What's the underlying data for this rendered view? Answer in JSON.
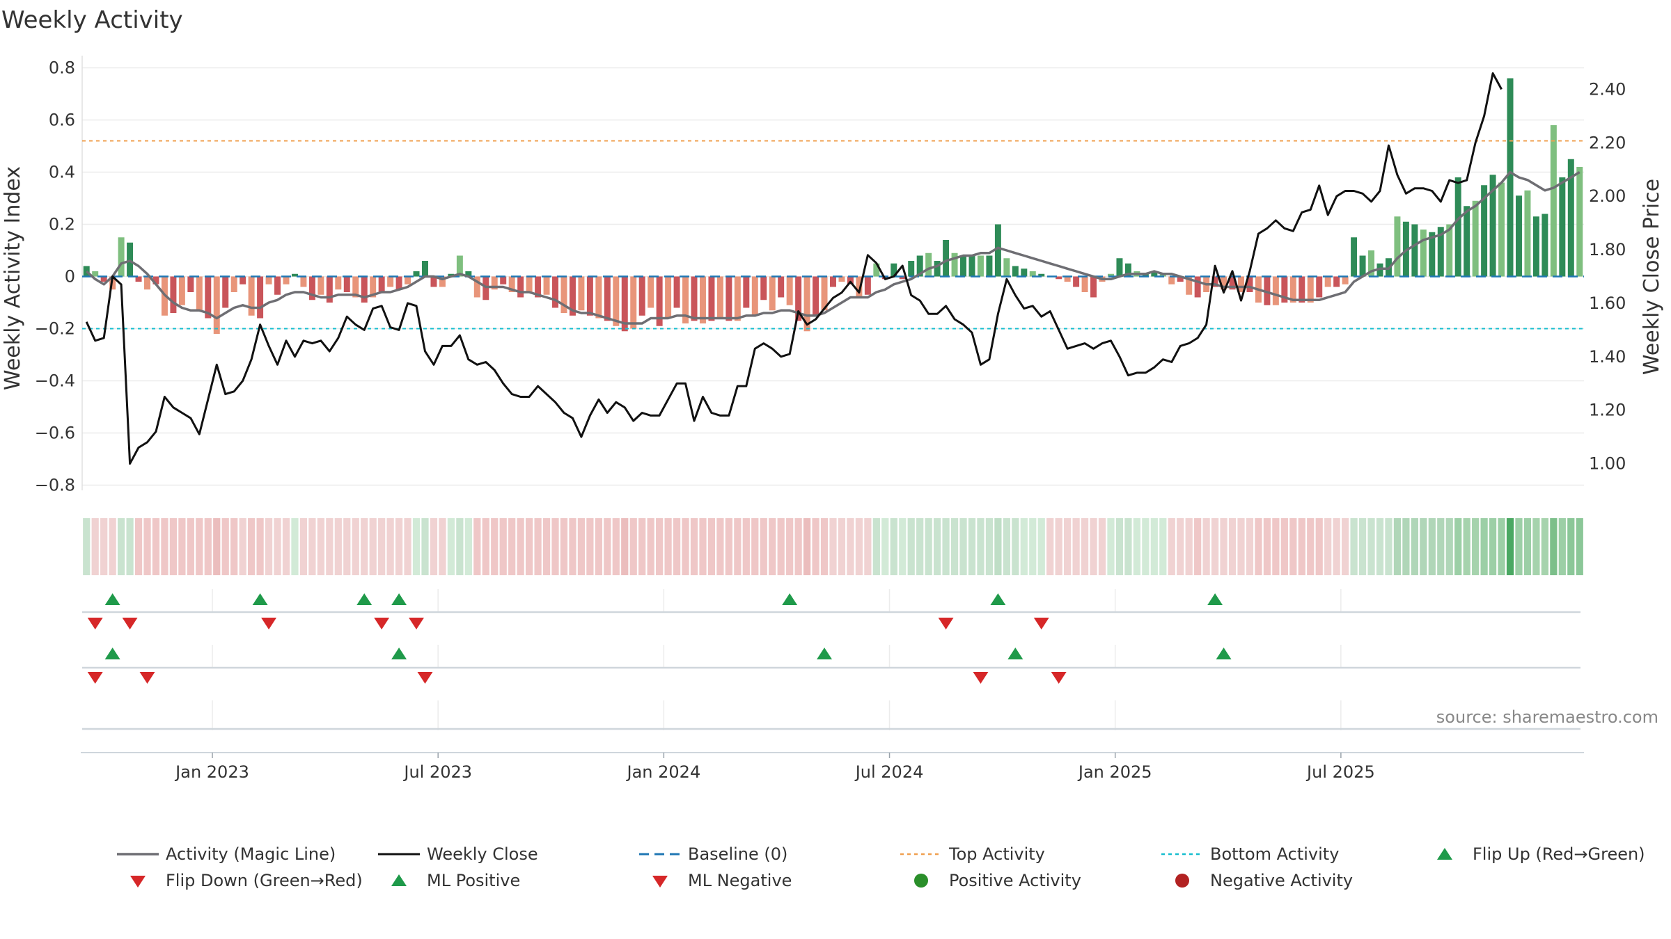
{
  "chart_data": {
    "type": "bar+line",
    "title": "Weekly Activity",
    "ylabel_left": "Weekly Activity Index",
    "ylabel_right": "Weekly Close Price",
    "yticks_left": [
      "0.8",
      "0.6",
      "0.4",
      "0.2",
      "0",
      "−0.2",
      "−0.4",
      "−0.6",
      "−0.8"
    ],
    "yticks_right": [
      "2.40",
      "2.20",
      "2.00",
      "1.80",
      "1.60",
      "1.40",
      "1.20",
      "1.00"
    ],
    "ylim_left": [
      -0.82,
      0.82
    ],
    "ylim_right": [
      0.9,
      2.5
    ],
    "xticks": [
      "Jan 2023",
      "Jul 2023",
      "Jan 2024",
      "Jul 2024",
      "Jan 2025",
      "Jul 2025"
    ],
    "xtick_weeks": [
      15,
      41,
      67,
      93,
      119,
      145
    ],
    "top_activity": 0.52,
    "bottom_activity": -0.2,
    "activity": [
      0.04,
      0.02,
      -0.02,
      -0.05,
      0.15,
      0.13,
      -0.02,
      -0.05,
      -0.03,
      -0.15,
      -0.14,
      -0.11,
      -0.06,
      -0.13,
      -0.16,
      -0.22,
      -0.12,
      -0.06,
      -0.03,
      -0.15,
      -0.16,
      -0.03,
      -0.07,
      -0.03,
      0.01,
      -0.04,
      -0.09,
      -0.07,
      -0.1,
      -0.05,
      -0.06,
      -0.08,
      -0.1,
      -0.08,
      -0.06,
      -0.04,
      -0.05,
      -0.03,
      0.02,
      0.06,
      -0.04,
      -0.04,
      0.01,
      0.08,
      0.02,
      -0.08,
      -0.09,
      -0.05,
      -0.03,
      -0.06,
      -0.08,
      -0.06,
      -0.08,
      -0.07,
      -0.12,
      -0.14,
      -0.15,
      -0.13,
      -0.15,
      -0.16,
      -0.17,
      -0.19,
      -0.21,
      -0.2,
      -0.15,
      -0.12,
      -0.19,
      -0.16,
      -0.12,
      -0.18,
      -0.17,
      -0.18,
      -0.17,
      -0.16,
      -0.17,
      -0.17,
      -0.12,
      -0.15,
      -0.09,
      -0.13,
      -0.08,
      -0.11,
      -0.17,
      -0.21,
      -0.15,
      -0.13,
      -0.04,
      -0.02,
      -0.03,
      -0.08,
      -0.07,
      0.05,
      -0.01,
      0.05,
      -0.01,
      0.06,
      0.08,
      0.09,
      0.06,
      0.14,
      0.09,
      0.08,
      0.08,
      0.08,
      0.08,
      0.2,
      0.07,
      0.04,
      0.03,
      0.02,
      0.01,
      0.0,
      -0.01,
      -0.02,
      -0.04,
      -0.06,
      -0.08,
      -0.02,
      0.01,
      0.07,
      0.05,
      0.02,
      0.01,
      0.02,
      0.01,
      -0.03,
      -0.02,
      -0.07,
      -0.08,
      -0.06,
      -0.04,
      -0.05,
      -0.05,
      -0.06,
      -0.06,
      -0.1,
      -0.11,
      -0.11,
      -0.1,
      -0.1,
      -0.1,
      -0.1,
      -0.08,
      -0.04,
      -0.04,
      -0.03,
      0.15,
      0.08,
      0.1,
      0.05,
      0.07,
      0.23,
      0.21,
      0.2,
      0.18,
      0.17,
      0.19,
      0.2,
      0.38,
      0.27,
      0.29,
      0.35,
      0.39,
      0.36,
      0.76,
      0.31,
      0.33,
      0.23,
      0.24,
      0.58,
      0.38,
      0.45,
      0.42
    ],
    "magic_line": [
      0.02,
      -0.01,
      -0.03,
      0.0,
      0.05,
      0.06,
      0.04,
      0.01,
      -0.03,
      -0.07,
      -0.1,
      -0.12,
      -0.13,
      -0.13,
      -0.14,
      -0.16,
      -0.14,
      -0.12,
      -0.11,
      -0.12,
      -0.12,
      -0.1,
      -0.09,
      -0.07,
      -0.06,
      -0.06,
      -0.07,
      -0.08,
      -0.08,
      -0.07,
      -0.07,
      -0.07,
      -0.08,
      -0.07,
      -0.06,
      -0.06,
      -0.05,
      -0.04,
      -0.02,
      0.0,
      0.0,
      -0.01,
      0.0,
      0.01,
      0.0,
      -0.02,
      -0.04,
      -0.04,
      -0.04,
      -0.05,
      -0.06,
      -0.06,
      -0.07,
      -0.08,
      -0.09,
      -0.11,
      -0.13,
      -0.14,
      -0.14,
      -0.15,
      -0.16,
      -0.17,
      -0.18,
      -0.18,
      -0.18,
      -0.16,
      -0.16,
      -0.16,
      -0.15,
      -0.15,
      -0.16,
      -0.16,
      -0.16,
      -0.16,
      -0.16,
      -0.16,
      -0.15,
      -0.15,
      -0.14,
      -0.14,
      -0.13,
      -0.13,
      -0.14,
      -0.15,
      -0.15,
      -0.14,
      -0.12,
      -0.1,
      -0.08,
      -0.08,
      -0.08,
      -0.06,
      -0.05,
      -0.03,
      -0.02,
      -0.01,
      0.01,
      0.03,
      0.04,
      0.06,
      0.07,
      0.08,
      0.08,
      0.09,
      0.09,
      0.11,
      0.1,
      0.09,
      0.08,
      0.07,
      0.06,
      0.05,
      0.04,
      0.03,
      0.02,
      0.01,
      0.0,
      -0.01,
      -0.01,
      0.0,
      0.01,
      0.01,
      0.01,
      0.02,
      0.01,
      0.01,
      0.0,
      -0.01,
      -0.02,
      -0.03,
      -0.03,
      -0.04,
      -0.04,
      -0.04,
      -0.04,
      -0.05,
      -0.06,
      -0.07,
      -0.08,
      -0.09,
      -0.09,
      -0.09,
      -0.09,
      -0.08,
      -0.07,
      -0.06,
      -0.02,
      0.0,
      0.02,
      0.03,
      0.03,
      0.07,
      0.1,
      0.12,
      0.14,
      0.15,
      0.16,
      0.18,
      0.22,
      0.25,
      0.27,
      0.3,
      0.33,
      0.36,
      0.4,
      0.38,
      0.37,
      0.35,
      0.33,
      0.34,
      0.36,
      0.38,
      0.4
    ],
    "weekly_close": [
      1.53,
      1.46,
      1.47,
      1.7,
      1.67,
      1.0,
      1.06,
      1.08,
      1.12,
      1.25,
      1.21,
      1.19,
      1.17,
      1.11,
      1.24,
      1.37,
      1.26,
      1.27,
      1.31,
      1.39,
      1.52,
      1.44,
      1.37,
      1.46,
      1.4,
      1.46,
      1.45,
      1.46,
      1.42,
      1.47,
      1.55,
      1.52,
      1.5,
      1.58,
      1.59,
      1.51,
      1.5,
      1.6,
      1.59,
      1.42,
      1.37,
      1.44,
      1.44,
      1.48,
      1.39,
      1.37,
      1.38,
      1.35,
      1.3,
      1.26,
      1.25,
      1.25,
      1.29,
      1.26,
      1.23,
      1.19,
      1.17,
      1.1,
      1.18,
      1.24,
      1.19,
      1.23,
      1.21,
      1.16,
      1.19,
      1.18,
      1.18,
      1.24,
      1.3,
      1.3,
      1.16,
      1.25,
      1.19,
      1.18,
      1.18,
      1.29,
      1.29,
      1.43,
      1.45,
      1.43,
      1.4,
      1.41,
      1.57,
      1.52,
      1.54,
      1.58,
      1.62,
      1.64,
      1.68,
      1.64,
      1.78,
      1.75,
      1.69,
      1.7,
      1.74,
      1.63,
      1.61,
      1.56,
      1.56,
      1.59,
      1.54,
      1.52,
      1.49,
      1.37,
      1.39,
      1.56,
      1.69,
      1.63,
      1.58,
      1.59,
      1.55,
      1.57,
      1.5,
      1.43,
      1.44,
      1.45,
      1.43,
      1.45,
      1.46,
      1.4,
      1.33,
      1.34,
      1.34,
      1.36,
      1.39,
      1.38,
      1.44,
      1.45,
      1.47,
      1.52,
      1.74,
      1.64,
      1.72,
      1.61,
      1.72,
      1.86,
      1.88,
      1.91,
      1.88,
      1.87,
      1.94,
      1.95,
      2.04,
      1.93,
      2.0,
      2.02,
      2.02,
      2.01,
      1.98,
      2.02,
      2.19,
      2.08,
      2.01,
      2.03,
      2.03,
      2.02,
      1.98,
      2.06,
      2.05,
      2.06,
      2.2,
      2.3,
      2.46,
      2.4
    ],
    "strip_colors": [
      "#c9e3cf",
      "#f0d2d2",
      "#f0d2d2",
      "#f0d2d2",
      "#c9e3cf",
      "#c9e3cf",
      "#efc7c7",
      "#efc7c7",
      "#efc7c7",
      "#efc7c7",
      "#efc7c7",
      "#efc7c7",
      "#efc7c7",
      "#efc7c7",
      "#efc7c7",
      "#ebbdbd",
      "#efc7c7",
      "#efc7c7",
      "#f0d2d2",
      "#efc7c7",
      "#efc7c7",
      "#f0d2d2",
      "#f0d2d2",
      "#f0d2d2",
      "#d2ead7",
      "#f0d2d2",
      "#f0d2d2",
      "#f0d2d2",
      "#f0d2d2",
      "#f0d2d2",
      "#f0d2d2",
      "#f0d2d2",
      "#f0d2d2",
      "#f0d2d2",
      "#f0d2d2",
      "#f0d2d2",
      "#f0d2d2",
      "#f0d2d2",
      "#d2ead7",
      "#c9e3cf",
      "#f0d2d2",
      "#f0d2d2",
      "#d2ead7",
      "#c9e3cf",
      "#d2ead7",
      "#efc7c7",
      "#efc7c7",
      "#efc7c7",
      "#efc7c7",
      "#efc7c7",
      "#efc7c7",
      "#efc7c7",
      "#efc7c7",
      "#efc7c7",
      "#efc7c7",
      "#efc7c7",
      "#efc7c7",
      "#efc7c7",
      "#efc7c7",
      "#efc7c7",
      "#efc7c7",
      "#efc7c7",
      "#ebbdbd",
      "#efc7c7",
      "#efc7c7",
      "#efc7c7",
      "#efc7c7",
      "#efc7c7",
      "#efc7c7",
      "#efc7c7",
      "#efc7c7",
      "#efc7c7",
      "#efc7c7",
      "#efc7c7",
      "#efc7c7",
      "#efc7c7",
      "#efc7c7",
      "#efc7c7",
      "#efc7c7",
      "#efc7c7",
      "#efc7c7",
      "#efc7c7",
      "#efc7c7",
      "#ebbdbd",
      "#efc7c7",
      "#efc7c7",
      "#f0d2d2",
      "#f0d2d2",
      "#f0d2d2",
      "#f0d2d2",
      "#f0d2d2",
      "#c9e3cf",
      "#d2ead7",
      "#c9e3cf",
      "#d2ead7",
      "#c9e3cf",
      "#c9e3cf",
      "#c9e3cf",
      "#c9e3cf",
      "#c9e3cf",
      "#c9e3cf",
      "#c9e3cf",
      "#c9e3cf",
      "#c9e3cf",
      "#c9e3cf",
      "#bfdec6",
      "#c9e3cf",
      "#c9e3cf",
      "#d2ead7",
      "#d2ead7",
      "#d2ead7",
      "#f0d2d2",
      "#f0d2d2",
      "#f0d2d2",
      "#f0d2d2",
      "#f0d2d2",
      "#f0d2d2",
      "#f0d2d2",
      "#d2ead7",
      "#c9e3cf",
      "#c9e3cf",
      "#d2ead7",
      "#d2ead7",
      "#d2ead7",
      "#d2ead7",
      "#f0d2d2",
      "#f0d2d2",
      "#f0d2d2",
      "#efc7c7",
      "#f0d2d2",
      "#f0d2d2",
      "#f0d2d2",
      "#f0d2d2",
      "#f0d2d2",
      "#f0d2d2",
      "#efc7c7",
      "#efc7c7",
      "#efc7c7",
      "#efc7c7",
      "#efc7c7",
      "#efc7c7",
      "#efc7c7",
      "#efc7c7",
      "#f0d2d2",
      "#f0d2d2",
      "#f0d2d2",
      "#c9e3cf",
      "#c9e3cf",
      "#c9e3cf",
      "#c9e3cf",
      "#c9e3cf",
      "#b0d6b8",
      "#b0d6b8",
      "#b0d6b8",
      "#b0d6b8",
      "#b0d6b8",
      "#b0d6b8",
      "#b0d6b8",
      "#9ccfa6",
      "#a6d3ad",
      "#a6d3ad",
      "#9ccfa6",
      "#9ccfa6",
      "#9ccfa6",
      "#4aa862",
      "#9ccfa6",
      "#9ccfa6",
      "#a6d3ad",
      "#a6d3ad",
      "#7cbf8a",
      "#9ccfa6",
      "#8bc798",
      "#8bc798"
    ],
    "flip_up_weeks": [
      3,
      20,
      32,
      36,
      81,
      105,
      130
    ],
    "flip_down_weeks": [
      1,
      5,
      21,
      34,
      38,
      99,
      110
    ],
    "ml_positive_weeks": [
      3,
      36,
      85,
      107,
      131
    ],
    "ml_negative_weeks": [
      1,
      7,
      39,
      103,
      112
    ],
    "positive_activity_weeks": [],
    "negative_activity_weeks": [],
    "source": "source: sharemaestro.com",
    "legend": [
      {
        "label": "Activity (Magic Line)",
        "symbol": "line-gray"
      },
      {
        "label": "Weekly Close",
        "symbol": "line-black"
      },
      {
        "label": "Baseline (0)",
        "symbol": "dash-blue"
      },
      {
        "label": "Top Activity",
        "symbol": "dot-orange"
      },
      {
        "label": "Bottom Activity",
        "symbol": "dot-cyan"
      },
      {
        "label": "Flip Up (Red→Green)",
        "symbol": "tri-up-green"
      },
      {
        "label": "Flip Down (Green→Red)",
        "symbol": "tri-down-red"
      },
      {
        "label": "ML Positive",
        "symbol": "tri-up-green"
      },
      {
        "label": "ML Negative",
        "symbol": "tri-down-red"
      },
      {
        "label": "Positive Activity",
        "symbol": "circle-green"
      },
      {
        "label": "Negative Activity",
        "symbol": "circle-red"
      }
    ],
    "colors": {
      "green_dark": "#2e8b57",
      "green_light": "#7fbf7f",
      "red_dark": "#c9555a",
      "red_light": "#e8957a",
      "magic_line": "#6e6e73",
      "close": "#111111",
      "baseline": "#1f77b4",
      "top": "#f0a050",
      "bottom": "#17becf",
      "tri_green": "#1f9a4a",
      "tri_red": "#d62728",
      "circle_green": "#2a8f2a",
      "circle_red": "#b22222"
    }
  }
}
